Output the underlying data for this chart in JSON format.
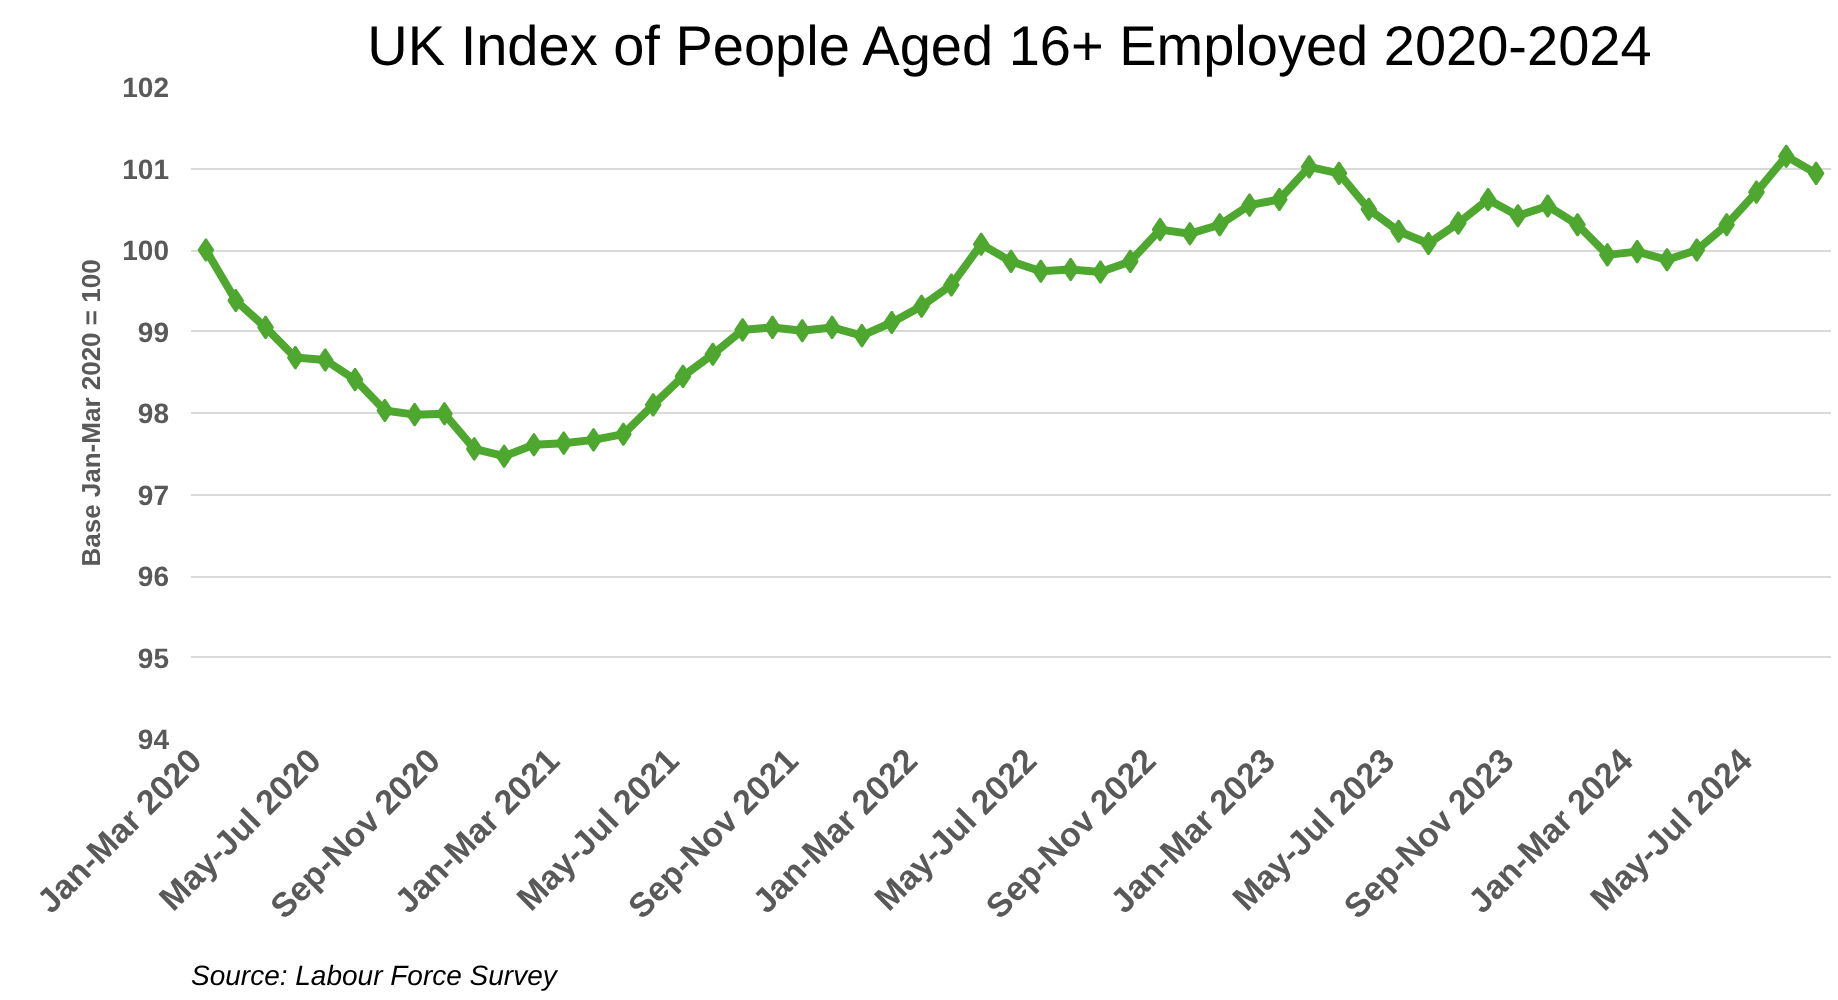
{
  "chart_data": {
    "type": "line",
    "title": "UK Index of People Aged 16+ Employed 2020-2024",
    "ylabel": "Base Jan-Mar 2020 = 100",
    "categories": [
      "Jan-Mar 2020",
      null,
      null,
      null,
      "May-Jul 2020",
      null,
      null,
      null,
      "Sep-Nov 2020",
      null,
      null,
      null,
      "Jan-Mar 2021",
      null,
      null,
      null,
      "May-Jul 2021",
      null,
      null,
      null,
      "Sep-Nov 2021",
      null,
      null,
      null,
      "Jan-Mar 2022",
      null,
      null,
      null,
      "May-Jul 2022",
      null,
      null,
      null,
      "Sep-Nov 2022",
      null,
      null,
      null,
      "Jan-Mar 2023",
      null,
      null,
      null,
      "May-Jul 2023",
      null,
      null,
      null,
      "Sep-Nov 2023",
      null,
      null,
      null,
      "Jan-Mar 2024",
      null,
      null,
      null,
      "May-Jul 2024",
      null,
      null
    ],
    "series": [
      {
        "color": "#4ea72e",
        "values": [
          100.0,
          99.38,
          99.05,
          98.68,
          98.65,
          98.41,
          98.03,
          97.98,
          97.99,
          97.56,
          97.47,
          97.61,
          97.63,
          97.67,
          97.74,
          98.1,
          98.45,
          98.72,
          99.02,
          99.05,
          99.01,
          99.05,
          98.95,
          99.11,
          99.31,
          99.57,
          100.07,
          99.86,
          99.74,
          99.76,
          99.73,
          99.86,
          100.25,
          100.2,
          100.31,
          100.55,
          100.62,
          101.02,
          100.94,
          100.5,
          100.23,
          100.08,
          100.33,
          100.62,
          100.42,
          100.54,
          100.31,
          99.94,
          99.98,
          99.88,
          100.0,
          100.31,
          100.71,
          101.15,
          100.94
        ]
      }
    ],
    "ylim": [
      94,
      102
    ],
    "yticks": [
      94,
      95,
      96,
      97,
      98,
      99,
      100,
      101,
      102
    ],
    "grid": "y",
    "marker": "diamond",
    "line_style": "solid",
    "annotations": [
      "Source: Labour Force Survey"
    ]
  }
}
